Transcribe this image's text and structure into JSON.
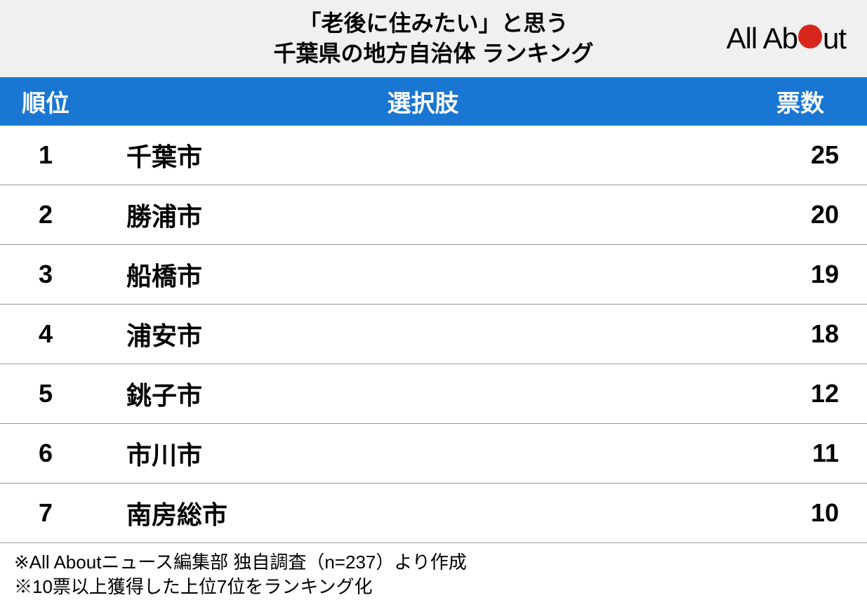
{
  "header": {
    "title_line1": "「老後に住みたい」と思う",
    "title_line2": "千葉県の地方自治体 ランキング",
    "logo_text_before": "All Ab",
    "logo_text_after": "ut"
  },
  "table": {
    "type": "table",
    "columns": {
      "rank": "順位",
      "choice": "選択肢",
      "votes": "票数"
    },
    "header_bg_color": "#1976d2",
    "header_text_color": "#ffffff",
    "row_border_color": "#999999",
    "rows": [
      {
        "rank": "1",
        "choice": "千葉市",
        "votes": "25"
      },
      {
        "rank": "2",
        "choice": "勝浦市",
        "votes": "20"
      },
      {
        "rank": "3",
        "choice": "船橋市",
        "votes": "19"
      },
      {
        "rank": "4",
        "choice": "浦安市",
        "votes": "18"
      },
      {
        "rank": "5",
        "choice": "銚子市",
        "votes": "12"
      },
      {
        "rank": "6",
        "choice": "市川市",
        "votes": "11"
      },
      {
        "rank": "7",
        "choice": "南房総市",
        "votes": "10"
      }
    ]
  },
  "footer": {
    "note1": "※All Aboutニュース編集部 独自調査（n=237）より作成",
    "note2": "※10票以上獲得した上位7位をランキング化"
  },
  "styling": {
    "title_fontsize": 32,
    "header_fontsize": 34,
    "cell_fontsize": 36,
    "footnote_fontsize": 26,
    "logo_dot_color": "#d8261c",
    "header_bg": "#f0f0f0",
    "body_bg": "#ffffff"
  }
}
